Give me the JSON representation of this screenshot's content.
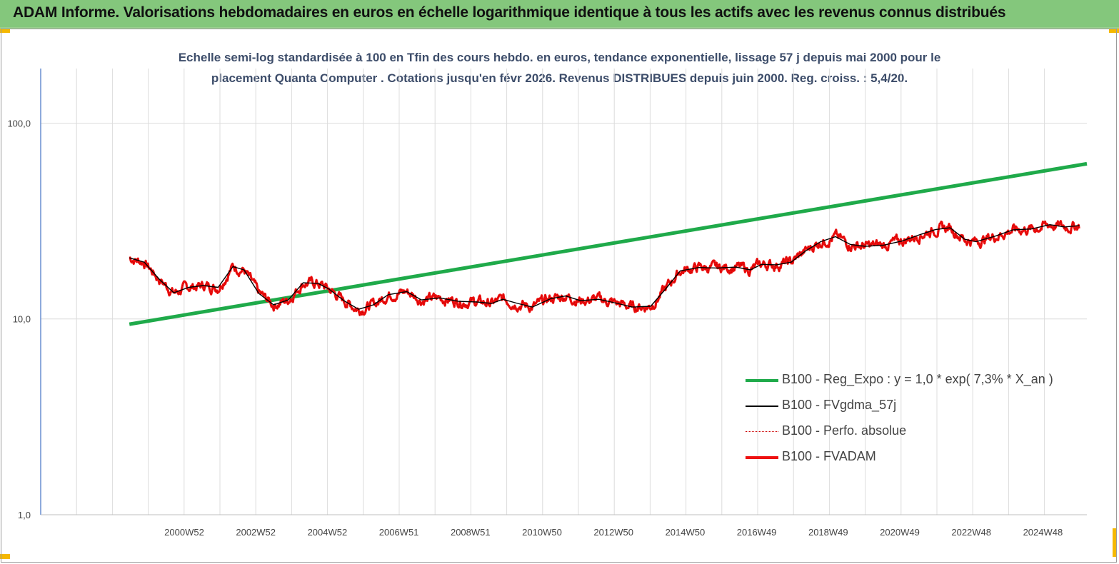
{
  "header": {
    "title": "ADAM Informe. Valorisations hebdomadaires en euros en échelle logarithmique identique à tous les actifs avec les revenus connus distribués"
  },
  "chart_data": {
    "type": "line",
    "subtitle_line1": "Echelle semi-log standardisée à 100 en Tfin des cours hebdo. en euros, tendance exponentielle, lissage 57 j depuis mai 2000 pour le",
    "subtitle_line2": "placement Quanta Computer . Cotations jusqu'en févr 2026. Revenus DISTRIBUES depuis juin 2000. Reg. croiss. : 5,4/20.",
    "y_scale": "log",
    "ylim": [
      1,
      190
    ],
    "y_ticks": [
      "1,0",
      "10,0",
      "100,0"
    ],
    "x_ticks": [
      "2000W52",
      "2002W52",
      "2004W52",
      "2006W51",
      "2008W51",
      "2010W50",
      "2012W50",
      "2014W50",
      "2016W49",
      "2018W49",
      "2020W49",
      "2022W48",
      "2024W48"
    ],
    "x_range_years": [
      1998.0,
      2026.3
    ],
    "legend_position": "bottom-right",
    "grid": "vertical",
    "series": [
      {
        "name": "B100 - Reg_Expo : y = 1,0 *  exp( 7,3% *  X_an )",
        "color": "#1faa4a",
        "style": "thick",
        "points": [
          [
            2000.4,
            9.4
          ],
          [
            2026.3,
            62
          ]
        ]
      },
      {
        "name": "B100 - FVgdma_57j",
        "color": "#000000",
        "style": "thin",
        "points": [
          [
            2000.4,
            20.5
          ],
          [
            2000.8,
            19.5
          ],
          [
            2001.2,
            16
          ],
          [
            2001.6,
            13.6
          ],
          [
            2002.0,
            14.5
          ],
          [
            2002.4,
            14.8
          ],
          [
            2002.8,
            14.5
          ],
          [
            2003.2,
            18.5
          ],
          [
            2003.5,
            17.8
          ],
          [
            2003.9,
            13.5
          ],
          [
            2004.3,
            11.8
          ],
          [
            2004.7,
            12.5
          ],
          [
            2005.1,
            15.3
          ],
          [
            2005.5,
            15.2
          ],
          [
            2005.8,
            14.2
          ],
          [
            2006.2,
            12.4
          ],
          [
            2006.6,
            11.2
          ],
          [
            2007.0,
            11.8
          ],
          [
            2007.4,
            13.3
          ],
          [
            2007.9,
            13.8
          ],
          [
            2008.3,
            12.5
          ],
          [
            2008.8,
            12.8
          ],
          [
            2009.3,
            12.3
          ],
          [
            2009.8,
            12.2
          ],
          [
            2010.2,
            12.0
          ],
          [
            2010.5,
            12.6
          ],
          [
            2010.9,
            12.0
          ],
          [
            2011.3,
            11.5
          ],
          [
            2011.8,
            12.7
          ],
          [
            2012.2,
            13.1
          ],
          [
            2012.6,
            12.4
          ],
          [
            2013.1,
            12.6
          ],
          [
            2013.6,
            12.0
          ],
          [
            2014.0,
            11.5
          ],
          [
            2014.5,
            11.6
          ],
          [
            2014.9,
            14.2
          ],
          [
            2015.3,
            17.6
          ],
          [
            2015.8,
            18.3
          ],
          [
            2016.3,
            18.2
          ],
          [
            2016.8,
            18.4
          ],
          [
            2017.2,
            17.8
          ],
          [
            2017.5,
            19.0
          ],
          [
            2017.9,
            18.9
          ],
          [
            2018.3,
            19.5
          ],
          [
            2018.7,
            22.3
          ],
          [
            2019.1,
            24.8
          ],
          [
            2019.5,
            26.3
          ],
          [
            2019.9,
            24.0
          ],
          [
            2020.3,
            23.5
          ],
          [
            2020.8,
            23.8
          ],
          [
            2021.3,
            25.0
          ],
          [
            2021.8,
            27.0
          ],
          [
            2022.2,
            28.6
          ],
          [
            2022.6,
            29.2
          ],
          [
            2023.0,
            25.5
          ],
          [
            2023.3,
            24.8
          ],
          [
            2023.8,
            26.4
          ],
          [
            2024.3,
            28.5
          ],
          [
            2024.8,
            28.8
          ],
          [
            2025.3,
            30.3
          ],
          [
            2025.7,
            29.5
          ],
          [
            2026.1,
            30.0
          ]
        ]
      },
      {
        "name": "B100 - Perfo. absolue",
        "color": "#cc0000",
        "style": "dotted",
        "points": []
      },
      {
        "name": "B100 - FVADAM",
        "color": "#ee1111",
        "style": "thick",
        "points": []
      }
    ]
  }
}
